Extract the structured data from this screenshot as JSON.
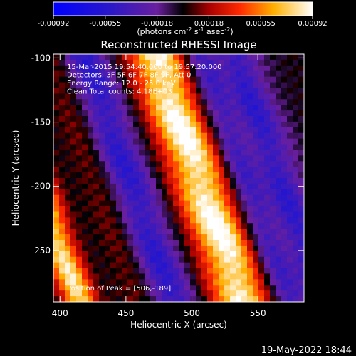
{
  "chart_data": {
    "type": "heatmap",
    "title": "Reconstructed RHESSI Image",
    "xlabel": "Heliocentric X (arcsec)",
    "ylabel": "Heliocentric Y (arcsec)",
    "xlim": [
      395,
      585
    ],
    "ylim": [
      -290,
      -97
    ],
    "x_ticks": [
      400,
      450,
      500,
      550
    ],
    "y_ticks": [
      -100,
      -150,
      -200,
      -250
    ],
    "colorbar": {
      "ticks": [
        "-0.00092",
        "-0.00055",
        "-0.00018",
        "0.00018",
        "0.00055",
        "0.00092"
      ],
      "units": "(photons cm",
      "range": [
        -0.00092,
        0.00092
      ]
    },
    "annotations": [
      "15-Mar-2015 19:54:40.000 to 19:57:20.000",
      "Detectors: 3F 5F 6F 7F 8F 9F, Att 0",
      "Energy Range: 12.0 - 25.0 keV",
      "Clean    Total counts: 4.18E+03"
    ],
    "peak_label": "Position of Peak = [506,-189]",
    "peak": [
      506,
      -189
    ],
    "stripes": [
      {
        "x0": 400,
        "y0": -100,
        "shift": -35,
        "amp": 0.55,
        "w": 12
      },
      {
        "x0": 447,
        "y0": -200,
        "shift": -35,
        "amp": -0.75,
        "w": 16
      },
      {
        "x0": 505,
        "y0": -189,
        "shift": -35,
        "amp": 1.0,
        "w": 16
      },
      {
        "x0": 555,
        "y0": -200,
        "shift": -35,
        "amp": -0.85,
        "w": 18
      },
      {
        "x0": 405,
        "y0": -262,
        "shift": -35,
        "amp": 0.85,
        "w": 9
      },
      {
        "x0": 590,
        "y0": -300,
        "shift": -35,
        "amp": 0.5,
        "w": 8
      }
    ]
  },
  "timestamp": "19-May-2022 18:44"
}
